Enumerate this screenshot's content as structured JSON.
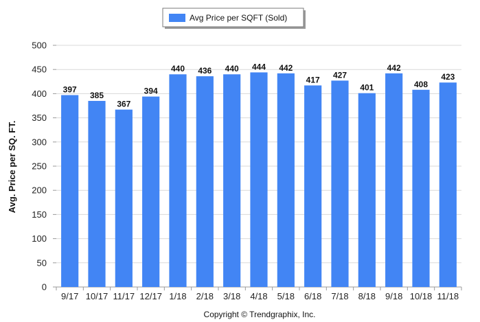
{
  "chart_data": {
    "type": "bar",
    "categories": [
      "9/17",
      "10/17",
      "11/17",
      "12/17",
      "1/18",
      "2/18",
      "3/18",
      "4/18",
      "5/18",
      "6/18",
      "7/18",
      "8/18",
      "9/18",
      "10/18",
      "11/18"
    ],
    "series": [
      {
        "name": "Avg Price per SQFT (Sold)",
        "color": "#4285f4",
        "values": [
          397,
          385,
          367,
          394,
          440,
          436,
          440,
          444,
          442,
          417,
          427,
          401,
          442,
          408,
          423
        ]
      }
    ],
    "ylabel": "Avg. Price per SQ. FT.",
    "xlabel": "",
    "ylim": [
      0,
      500
    ],
    "yticks": [
      0,
      50,
      100,
      150,
      200,
      250,
      300,
      350,
      400,
      450,
      500
    ],
    "grid": true,
    "legend": "top-center",
    "data_labels": true
  },
  "footer": {
    "copyright": "Copyright © Trendgraphix, Inc."
  }
}
